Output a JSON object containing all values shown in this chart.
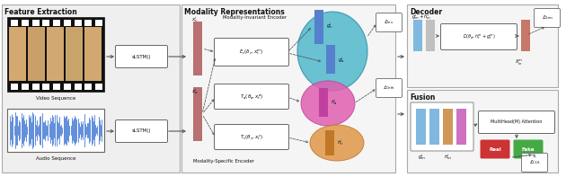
{
  "bg_color": "#ffffff",
  "colors": {
    "section_bg": "#f0f0f0",
    "section_border": "#999999",
    "pink_bar": "#b87070",
    "blue_bar": "#6090d0",
    "light_blue_bar": "#80b8e0",
    "gray_bar": "#c0c0c0",
    "pink_bar2": "#d080c0",
    "salmon_bar": "#c87868",
    "orange_bar": "#d09050",
    "teal_ellipse": "#50b8cc",
    "pink_ellipse": "#e060b0",
    "orange_ellipse": "#e09848",
    "red_box": "#cc3333",
    "green_box": "#44aa44",
    "encoder_box": "#ffffff",
    "audio_waveform": "#2060cc",
    "film_bg": "#111111",
    "film_face": "#c8a070"
  },
  "texts": {
    "feature_extraction": "Feature Extraction",
    "modality_representations": "Modality Representations",
    "decoder": "Decoder",
    "fusion": "Fusion",
    "video_sequence": "Video Sequence",
    "audio_sequence": "Audio Sequence",
    "slstm": "sLSTM()",
    "modality_invariant": "Modality-Invariant Encoder",
    "modality_specific": "Modality-Specific Encoder",
    "multihead": "MultiHead(M) Attention",
    "real": "Real",
    "fake": "Fake"
  }
}
